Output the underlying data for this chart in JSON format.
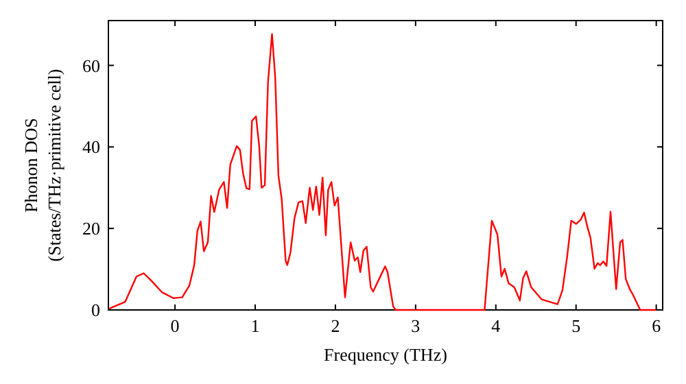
{
  "chart_data": {
    "type": "line",
    "xlabel": "Frequency (THz)",
    "ylabel": "Phonon DOS\n(States/THz·primitive cell)",
    "xlim": [
      -0.83,
      6.08
    ],
    "ylim": [
      0,
      71
    ],
    "xticks": [
      0,
      1,
      2,
      3,
      4,
      5,
      6
    ],
    "yticks": [
      0,
      20,
      40,
      60
    ],
    "grid": false,
    "marker": "none",
    "line_style": "solid",
    "series": [
      {
        "color": "#ff0000",
        "x": [
          -0.82,
          -0.62,
          -0.48,
          -0.39,
          -0.3,
          -0.16,
          -0.02,
          0.09,
          0.18,
          0.24,
          0.28,
          0.32,
          0.36,
          0.41,
          0.45,
          0.49,
          0.55,
          0.61,
          0.65,
          0.69,
          0.77,
          0.81,
          0.85,
          0.89,
          0.93,
          0.96,
          1.01,
          1.05,
          1.08,
          1.12,
          1.16,
          1.21,
          1.25,
          1.29,
          1.33,
          1.38,
          1.4,
          1.44,
          1.49,
          1.54,
          1.59,
          1.63,
          1.68,
          1.72,
          1.76,
          1.8,
          1.84,
          1.88,
          1.91,
          1.95,
          1.99,
          2.03,
          2.12,
          2.19,
          2.24,
          2.28,
          2.31,
          2.35,
          2.39,
          2.44,
          2.47,
          2.55,
          2.62,
          2.65,
          2.72,
          2.75,
          3.86,
          3.95,
          4.02,
          4.07,
          4.11,
          4.16,
          4.23,
          4.3,
          4.34,
          4.38,
          4.44,
          4.57,
          4.77,
          4.83,
          4.89,
          4.94,
          5.0,
          5.06,
          5.1,
          5.14,
          5.18,
          5.23,
          5.27,
          5.3,
          5.34,
          5.38,
          5.43,
          5.47,
          5.5,
          5.55,
          5.58,
          5.62,
          5.67,
          5.71,
          5.8,
          6.0
        ],
        "values": [
          0.3,
          2,
          8.2,
          9,
          7.3,
          4.3,
          2.9,
          3.1,
          6,
          11,
          19.4,
          21.7,
          14.4,
          16.6,
          28,
          24,
          29.5,
          31.4,
          25,
          35.7,
          40.2,
          39.3,
          33.4,
          29.9,
          29.6,
          46.4,
          47.5,
          40.2,
          30,
          30.6,
          55.9,
          67.7,
          57,
          32.9,
          27.3,
          12.1,
          11,
          14.1,
          22.5,
          26.4,
          26.7,
          21.3,
          30,
          24.5,
          30.3,
          23.3,
          32.5,
          18.3,
          29.5,
          31.4,
          25.6,
          27.6,
          3.1,
          16.6,
          12.1,
          12.9,
          9.3,
          14.6,
          15.5,
          5.6,
          4.5,
          7.8,
          10.7,
          9.3,
          0.9,
          0,
          0,
          21.9,
          18.5,
          8.2,
          10.1,
          6.5,
          5.6,
          2.3,
          7.8,
          9.5,
          5.6,
          2.6,
          1.4,
          4.8,
          13.2,
          21.9,
          21.1,
          22.2,
          23.9,
          20.5,
          17.7,
          10.1,
          11.5,
          11,
          11.9,
          10.8,
          24.1,
          13.2,
          5.1,
          16.6,
          17.2,
          7.6,
          5.1,
          3.7,
          0,
          0
        ]
      }
    ]
  }
}
